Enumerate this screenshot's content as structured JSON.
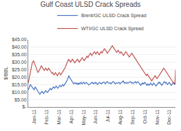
{
  "chart_data": {
    "type": "line",
    "title": "Gulf Coast ULSD Crack Spreads",
    "ylabel": "$/BBL",
    "xlim": [
      0,
      12
    ],
    "xticks": [
      {
        "value": 0.5,
        "label": "Jan-11"
      },
      {
        "value": 1.5,
        "label": "Feb-11"
      },
      {
        "value": 2.5,
        "label": "Mar-11"
      },
      {
        "value": 3.5,
        "label": "Apr-11"
      },
      {
        "value": 4.5,
        "label": "May-11"
      },
      {
        "value": 5.5,
        "label": "Jun-11"
      },
      {
        "value": 6.5,
        "label": "Jul-11"
      },
      {
        "value": 7.5,
        "label": "Aug-11"
      },
      {
        "value": 8.5,
        "label": "Sep-11"
      },
      {
        "value": 9.5,
        "label": "Oct-11"
      },
      {
        "value": 10.5,
        "label": "Nov-11"
      },
      {
        "value": 11.5,
        "label": "Dec-11"
      }
    ],
    "ylim": [
      0,
      45
    ],
    "yticks": [
      {
        "value": 0,
        "label": "$-"
      },
      {
        "value": 5,
        "label": "$5.00"
      },
      {
        "value": 10,
        "label": "$10.00"
      },
      {
        "value": 15,
        "label": "$15.00"
      },
      {
        "value": 20,
        "label": "$20.00"
      },
      {
        "value": 25,
        "label": "$25.00"
      },
      {
        "value": 30,
        "label": "$30.00"
      },
      {
        "value": 35,
        "label": "$35.00"
      },
      {
        "value": 40,
        "label": "$40.00"
      },
      {
        "value": 45,
        "label": "$45.00"
      }
    ],
    "grid": true,
    "legend": "top",
    "series": [
      {
        "name": "Brent/GC ULSD Crack Spread",
        "color": "#4472C4",
        "values": [
          11.5,
          12.0,
          13.0,
          14.5,
          15.0,
          14.5,
          14.0,
          13.5,
          13.0,
          12.5,
          12.0,
          11.5,
          12.0,
          13.5,
          13.0,
          12.5,
          11.5,
          11.0,
          10.5,
          10.0,
          9.5,
          9.0,
          8.5,
          9.0,
          9.5,
          10.0,
          10.5,
          10.0,
          9.5,
          9.0,
          9.5,
          10.0,
          10.5,
          11.0,
          10.5,
          10.0,
          9.8,
          10.0,
          10.5,
          11.0,
          11.5,
          12.0,
          12.5,
          12.0,
          11.5,
          12.0,
          12.5,
          13.0,
          13.5,
          13.0,
          12.5,
          13.0,
          13.5,
          14.0,
          13.5,
          13.0,
          12.5,
          13.0,
          13.5,
          14.0,
          14.5,
          14.0,
          13.5,
          14.0,
          14.5,
          15.0,
          14.5,
          14.0,
          14.5,
          15.0,
          15.5,
          16.0,
          16.5,
          17.0,
          18.0,
          19.0,
          20.5,
          21.0,
          20.0,
          19.5,
          19.0,
          18.5,
          17.5,
          17.0,
          16.5,
          16.0,
          15.5,
          16.0,
          16.2,
          15.8,
          16.0,
          15.5,
          16.0,
          15.5,
          15.0,
          16.0,
          15.5,
          16.0,
          15.5,
          16.0,
          16.5,
          16.0,
          15.5,
          16.0,
          16.2,
          16.5,
          16.0,
          15.5,
          16.0,
          16.3,
          16.5,
          16.0,
          15.8,
          15.5,
          15.0,
          14.8,
          15.0,
          15.5,
          15.8,
          16.0,
          16.3,
          16.0,
          16.5,
          16.0,
          15.5,
          16.0,
          16.2,
          16.0,
          16.5,
          16.0,
          15.5,
          15.0,
          15.5,
          16.0,
          16.2,
          16.5,
          16.0,
          15.8,
          16.0,
          15.5,
          16.0,
          16.2,
          16.5,
          16.8,
          16.5,
          16.0,
          15.5,
          16.0,
          16.5,
          16.8,
          17.0,
          16.5,
          16.0,
          15.8,
          16.0,
          16.3,
          16.0,
          15.5,
          16.0,
          16.5,
          16.8,
          17.0,
          16.8,
          16.5,
          16.0,
          15.5,
          16.0,
          16.2,
          16.0,
          15.8,
          16.0,
          16.2,
          16.5,
          16.0,
          15.5,
          16.0,
          16.2,
          16.5,
          16.8,
          17.0,
          17.5,
          16.5,
          16.0,
          16.5,
          16.0,
          15.8,
          16.0,
          16.5,
          16.0,
          15.8,
          16.2,
          16.5,
          16.8,
          17.0,
          16.8,
          16.5,
          16.0,
          16.5,
          16.0,
          15.8,
          16.0,
          16.5,
          16.8,
          17.0,
          16.5,
          16.0,
          16.5,
          16.8,
          17.0,
          16.5,
          16.0,
          15.5,
          15.0,
          14.5,
          15.0,
          15.5,
          16.0,
          15.5,
          16.0,
          15.5,
          16.0,
          16.5,
          16.0,
          15.5,
          15.0,
          14.5,
          15.0,
          15.5,
          15.0,
          14.5,
          15.0,
          15.5,
          16.0,
          15.5,
          15.0,
          14.5,
          15.0,
          15.5,
          16.0,
          15.5,
          15.0,
          14.5,
          14.0,
          14.5,
          15.0,
          15.5,
          16.0,
          16.5,
          16.0,
          16.5,
          16.0,
          15.5,
          15.0,
          14.5,
          15.0,
          15.5,
          16.0,
          16.5,
          17.0,
          16.5,
          16.0,
          16.5,
          16.0,
          15.5,
          15.0,
          15.5,
          16.0,
          16.5,
          16.0,
          15.5,
          15.0,
          14.5,
          15.0,
          15.5,
          16.0,
          16.5,
          16.0,
          15.5,
          15.0,
          16.5
        ]
      },
      {
        "name": "WTI/GC ULSD Crack Spread",
        "color": "#C0504D",
        "values": [
          16.0,
          17.0,
          19.0,
          21.0,
          23.0,
          25.0,
          27.0,
          28.5,
          29.0,
          30.0,
          30.5,
          31.0,
          30.0,
          29.0,
          28.5,
          27.5,
          26.5,
          25.5,
          24.5,
          23.5,
          23.0,
          23.5,
          24.0,
          24.5,
          25.0,
          26.0,
          27.0,
          27.5,
          27.0,
          26.5,
          26.0,
          25.5,
          25.0,
          24.5,
          25.0,
          25.5,
          26.0,
          25.5,
          25.0,
          24.5,
          25.0,
          25.5,
          26.0,
          25.5,
          25.0,
          24.5,
          24.0,
          23.5,
          23.0,
          22.5,
          23.0,
          22.5,
          22.0,
          21.5,
          22.0,
          22.5,
          23.0,
          22.5,
          22.0,
          21.5,
          21.0,
          21.5,
          22.0,
          22.5,
          23.0,
          22.5,
          22.0,
          21.5,
          22.0,
          22.5,
          23.0,
          23.5,
          24.0,
          24.5,
          25.0,
          25.5,
          26.0,
          27.0,
          28.0,
          29.0,
          30.0,
          31.0,
          31.5,
          32.0,
          31.5,
          31.0,
          30.5,
          30.0,
          30.5,
          31.0,
          31.5,
          32.0,
          31.5,
          31.0,
          30.5,
          30.0,
          29.5,
          30.0,
          30.5,
          31.0,
          31.5,
          32.0,
          31.5,
          31.0,
          30.5,
          30.0,
          30.5,
          31.0,
          31.5,
          32.0,
          32.5,
          33.0,
          32.5,
          32.0,
          31.5,
          31.0,
          31.5,
          32.0,
          32.5,
          33.0,
          33.5,
          34.0,
          33.5,
          33.0,
          34.0,
          34.5,
          35.0,
          35.5,
          36.0,
          35.5,
          35.0,
          34.5,
          35.0,
          35.5,
          36.0,
          36.5,
          37.0,
          36.5,
          36.0,
          35.5,
          36.0,
          36.5,
          37.0,
          36.5,
          36.0,
          35.5,
          35.0,
          35.5,
          36.0,
          36.5,
          37.0,
          36.5,
          36.0,
          37.0,
          37.5,
          38.0,
          38.5,
          39.0,
          38.5,
          38.0,
          37.5,
          37.0,
          36.5,
          36.0,
          36.5,
          37.0,
          37.5,
          38.0,
          38.5,
          39.0,
          39.5,
          40.0,
          40.5,
          41.0,
          40.5,
          40.0,
          39.5,
          39.0,
          38.5,
          38.0,
          37.5,
          37.0,
          36.5,
          37.0,
          37.5,
          38.0,
          37.5,
          37.0,
          36.5,
          36.0,
          36.5,
          37.0,
          36.5,
          36.0,
          35.5,
          35.0,
          34.5,
          35.0,
          35.5,
          36.0,
          36.5,
          37.0,
          36.5,
          36.0,
          35.5,
          35.0,
          34.5,
          34.0,
          33.5,
          34.0,
          34.5,
          35.0,
          35.5,
          36.0,
          35.5,
          35.0,
          34.5,
          34.0,
          33.5,
          33.0,
          32.5,
          32.0,
          31.5,
          31.0,
          30.5,
          30.0,
          29.5,
          29.0,
          28.5,
          28.0,
          27.5,
          27.0,
          26.5,
          26.0,
          25.5,
          25.0,
          24.5,
          24.0,
          23.5,
          23.0,
          22.5,
          22.0,
          21.5,
          21.0,
          21.5,
          22.0,
          21.5,
          21.0,
          20.5,
          20.0,
          19.5,
          19.0,
          18.5,
          18.0,
          17.5,
          18.0,
          18.5,
          19.0,
          19.5,
          20.0,
          20.5,
          21.0,
          20.5,
          20.0,
          19.5,
          19.0,
          19.5,
          20.0,
          20.5,
          21.0,
          21.5,
          22.0,
          22.5,
          23.0,
          23.5,
          24.0,
          24.5,
          25.0,
          25.5,
          26.0,
          25.5,
          25.0,
          24.5,
          24.0,
          23.5,
          23.0,
          22.5,
          22.0,
          21.5,
          21.0,
          20.5,
          20.0,
          19.5,
          19.0,
          18.5,
          18.0,
          17.5,
          17.0,
          16.5,
          16.0,
          15.5,
          16.0,
          16.5,
          25.0
        ]
      }
    ]
  }
}
